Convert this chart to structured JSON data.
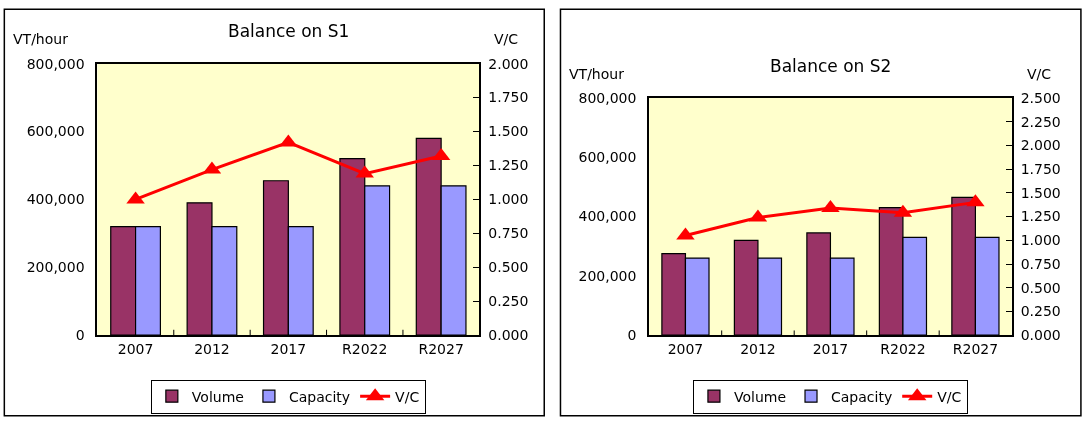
{
  "chart_data": [
    {
      "type": "bar",
      "title": "Balance on S1",
      "ylabel": "VT/hour",
      "y2label": "V/C",
      "categories": [
        "2007",
        "2012",
        "2017",
        "R2022",
        "R2027"
      ],
      "series": [
        {
          "name": "Volume",
          "color": "#993366",
          "values": [
            320000,
            390000,
            455000,
            520000,
            580000
          ]
        },
        {
          "name": "Capacity",
          "color": "#9999ff",
          "values": [
            320000,
            320000,
            320000,
            440000,
            440000
          ]
        },
        {
          "name": "V/C",
          "type": "line",
          "axis": "y2",
          "color": "#ff0000",
          "marker": "triangle",
          "values": [
            1.0,
            1.22,
            1.42,
            1.19,
            1.32
          ]
        }
      ],
      "ylim": [
        0,
        800000
      ],
      "yticks": [
        0,
        {
          "value": 200000,
          "label": "200,000"
        },
        {
          "value": 400000,
          "label": "400,000"
        },
        {
          "value": 600000,
          "label": "600,000"
        },
        {
          "value": 800000,
          "label": "800,000"
        }
      ],
      "y2lim": [
        0,
        2
      ],
      "y2ticks": [
        {
          "value": 0,
          "label": "0.000"
        },
        {
          "value": 0.25,
          "label": "0.250"
        },
        {
          "value": 0.5,
          "label": "0.500"
        },
        {
          "value": 0.75,
          "label": "0.750"
        },
        {
          "value": 1,
          "label": "1.000"
        },
        {
          "value": 1.25,
          "label": "1.250"
        },
        {
          "value": 1.5,
          "label": "1.500"
        },
        {
          "value": 1.75,
          "label": "1.750"
        },
        {
          "value": 2,
          "label": "2.000"
        }
      ],
      "legend": "bottom",
      "grid": false
    },
    {
      "type": "bar",
      "title": "Balance on S2",
      "ylabel": "VT/hour",
      "y2label": "V/C",
      "categories": [
        "2007",
        "2012",
        "2017",
        "R2022",
        "R2027"
      ],
      "series": [
        {
          "name": "Volume",
          "color": "#993366",
          "values": [
            275000,
            320000,
            345000,
            430000,
            465000
          ]
        },
        {
          "name": "Capacity",
          "color": "#9999ff",
          "values": [
            260000,
            260000,
            260000,
            330000,
            330000
          ]
        },
        {
          "name": "V/C",
          "type": "line",
          "axis": "y2",
          "color": "#ff0000",
          "marker": "triangle",
          "values": [
            1.05,
            1.24,
            1.34,
            1.29,
            1.4
          ]
        }
      ],
      "ylim": [
        0,
        800000
      ],
      "yticks": [
        0,
        {
          "value": 200000,
          "label": "200,000"
        },
        {
          "value": 400000,
          "label": "400,000"
        },
        {
          "value": 600000,
          "label": "600,000"
        },
        {
          "value": 800000,
          "label": "800,000"
        }
      ],
      "y2lim": [
        0,
        2.5
      ],
      "y2ticks": [
        {
          "value": 0,
          "label": "0.000"
        },
        {
          "value": 0.25,
          "label": "0.250"
        },
        {
          "value": 0.5,
          "label": "0.500"
        },
        {
          "value": 0.75,
          "label": "0.750"
        },
        {
          "value": 1,
          "label": "1.000"
        },
        {
          "value": 1.25,
          "label": "1.250"
        },
        {
          "value": 1.5,
          "label": "1.500"
        },
        {
          "value": 1.75,
          "label": "1.750"
        },
        {
          "value": 2,
          "label": "2.000"
        },
        {
          "value": 2.25,
          "label": "2.250"
        },
        {
          "value": 2.5,
          "label": "2.500"
        }
      ],
      "legend": "bottom",
      "grid": false
    }
  ]
}
